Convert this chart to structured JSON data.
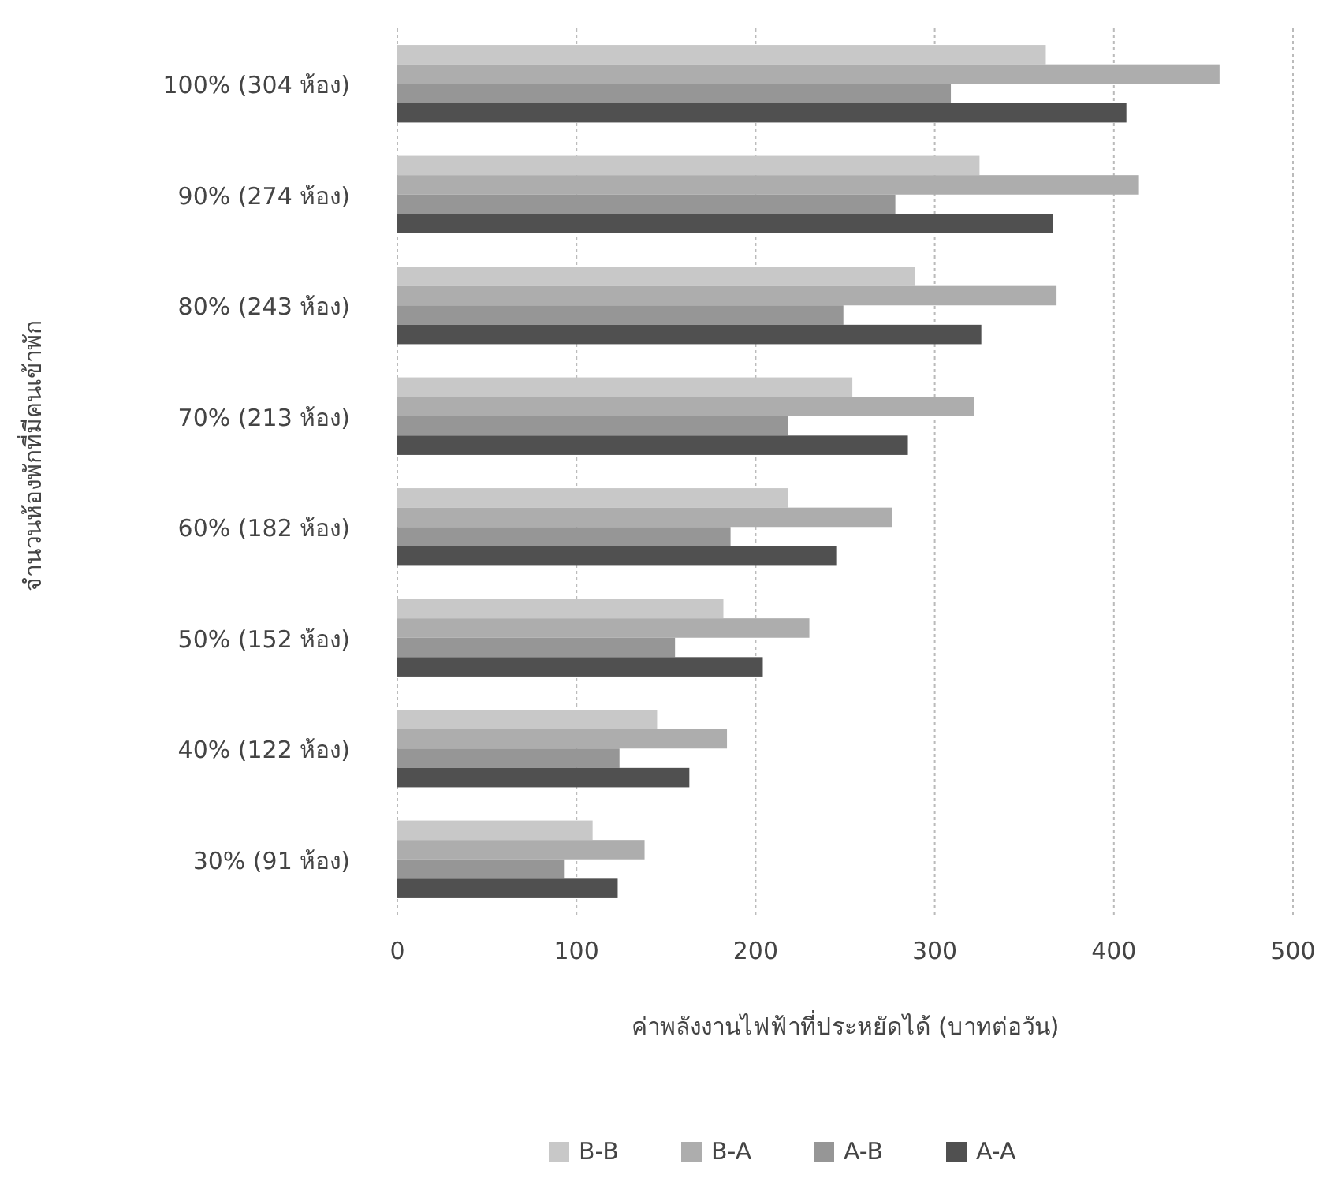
{
  "chart_data": {
    "type": "bar",
    "orientation": "horizontal",
    "xlabel": "ค่าพลังงานไฟฟ้าที่ประหยัดได้ (บาทต่อวัน)",
    "ylabel": "จำนวนห้องพักที่มีคนเข้าพัก",
    "categories": [
      "100% (304 ห้อง)",
      "90% (274 ห้อง)",
      "80% (243 ห้อง)",
      "70% (213 ห้อง)",
      "60% (182 ห้อง)",
      "50% (152 ห้อง)",
      "40% (122 ห้อง)",
      "30% (91 ห้อง)"
    ],
    "series": [
      {
        "name": "B-B",
        "color": "#c8c8c8",
        "values": [
          362,
          325,
          289,
          254,
          218,
          182,
          145,
          109
        ]
      },
      {
        "name": "B-A",
        "color": "#adadad",
        "values": [
          459,
          414,
          368,
          322,
          276,
          230,
          184,
          138
        ]
      },
      {
        "name": "A-B",
        "color": "#969696",
        "values": [
          309,
          278,
          249,
          218,
          186,
          155,
          124,
          93
        ]
      },
      {
        "name": "A-A",
        "color": "#505050",
        "values": [
          407,
          366,
          326,
          285,
          245,
          204,
          163,
          123
        ]
      }
    ],
    "xlim": [
      0,
      500
    ],
    "xticks": [
      0,
      100,
      200,
      300,
      400,
      500
    ],
    "grid": "x",
    "legend": "bottom"
  }
}
